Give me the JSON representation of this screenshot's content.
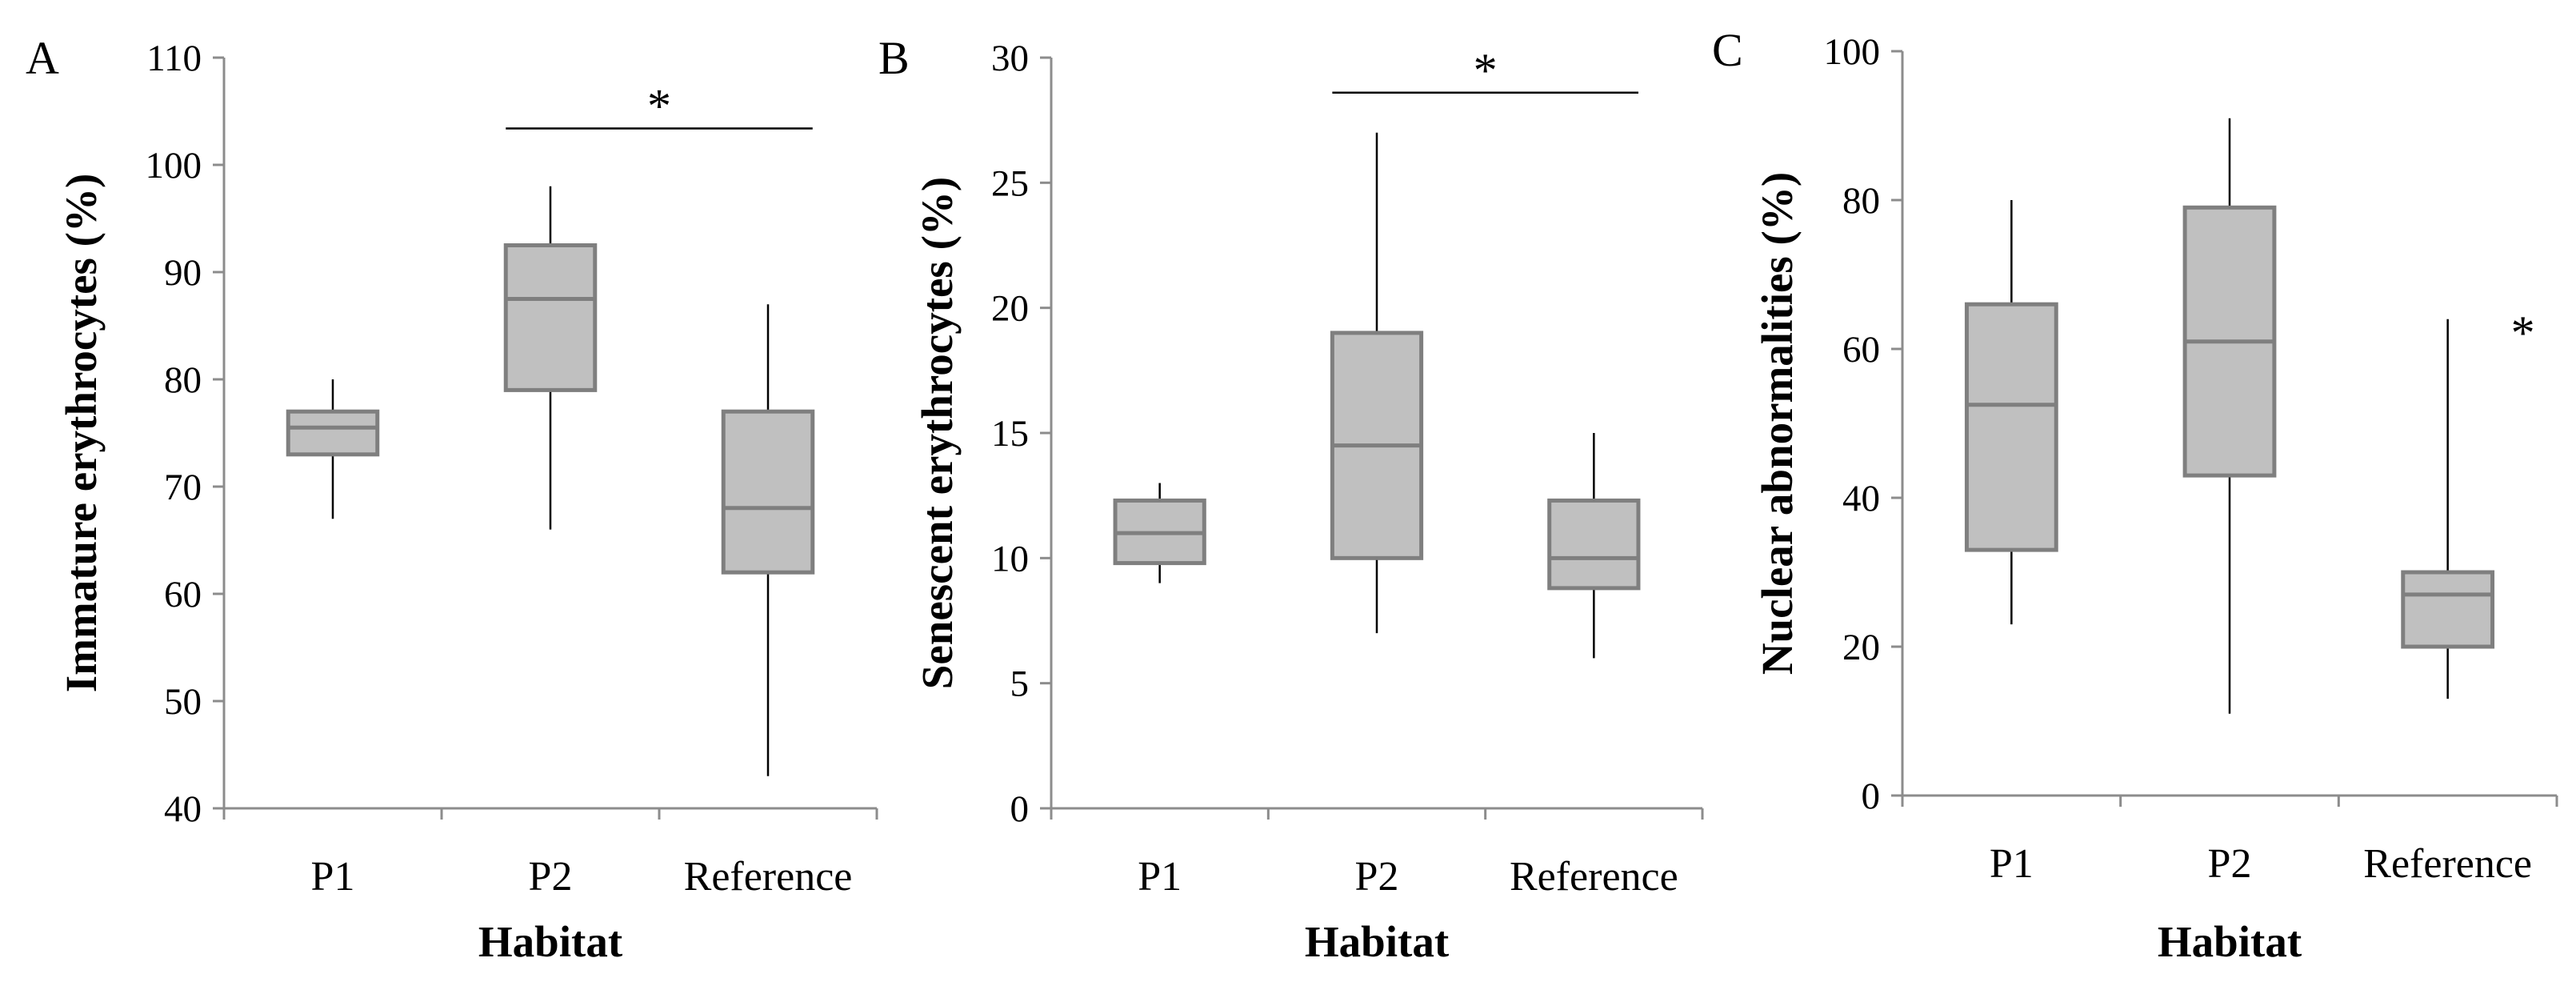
{
  "colors": {
    "box_fill": "#c0c0c0",
    "box_stroke": "#7f7f7f",
    "whisker": "#000000",
    "axis": "#8c8c8c"
  },
  "chart_data": [
    {
      "panel": "A",
      "type": "boxplot",
      "xlabel": "Habitat",
      "ylabel": "Immature erythrocytes (%)",
      "ylim": [
        40,
        110
      ],
      "ytick_step": 10,
      "categories": [
        "P1",
        "P2",
        "Reference"
      ],
      "boxes": [
        {
          "category": "P1",
          "min": 67,
          "q1": 73,
          "median": 75.5,
          "q3": 77,
          "max": 80
        },
        {
          "category": "P2",
          "min": 66,
          "q1": 79,
          "median": 87.5,
          "q3": 92.5,
          "max": 98
        },
        {
          "category": "Reference",
          "min": 43,
          "q1": 62,
          "median": 68,
          "q3": 77,
          "max": 87
        }
      ],
      "annotation": {
        "text": "*",
        "type": "bracket",
        "from": 1,
        "to": 2,
        "y": 103.4
      }
    },
    {
      "panel": "B",
      "type": "boxplot",
      "xlabel": "Habitat",
      "ylabel": "Senescent erythrocytes (%)",
      "ylim": [
        0,
        30
      ],
      "ytick_step": 5,
      "categories": [
        "P1",
        "P2",
        "Reference"
      ],
      "boxes": [
        {
          "category": "P1",
          "min": 9,
          "q1": 9.8,
          "median": 11,
          "q3": 12.3,
          "max": 13
        },
        {
          "category": "P2",
          "min": 7,
          "q1": 10,
          "median": 14.5,
          "q3": 19,
          "max": 27
        },
        {
          "category": "Reference",
          "min": 6,
          "q1": 8.8,
          "median": 10,
          "q3": 12.3,
          "max": 15
        }
      ],
      "annotation": {
        "text": "*",
        "type": "bracket",
        "from": 1,
        "to": 2,
        "y": 28.6
      }
    },
    {
      "panel": "C",
      "type": "boxplot",
      "xlabel": "Habitat",
      "ylabel": "Nuclear abnormalities (%)",
      "ylim": [
        0,
        100
      ],
      "ytick_step": 20,
      "categories": [
        "P1",
        "P2",
        "Reference"
      ],
      "boxes": [
        {
          "category": "P1",
          "min": 23,
          "q1": 33,
          "median": 52.5,
          "q3": 66,
          "max": 80
        },
        {
          "category": "P2",
          "min": 11,
          "q1": 43,
          "median": 61,
          "q3": 79,
          "max": 91
        },
        {
          "category": "Reference",
          "min": 13,
          "q1": 20,
          "median": 27,
          "q3": 30,
          "max": 64
        }
      ],
      "annotation": {
        "text": "*",
        "type": "marker",
        "category": 2,
        "y": 63
      }
    }
  ]
}
